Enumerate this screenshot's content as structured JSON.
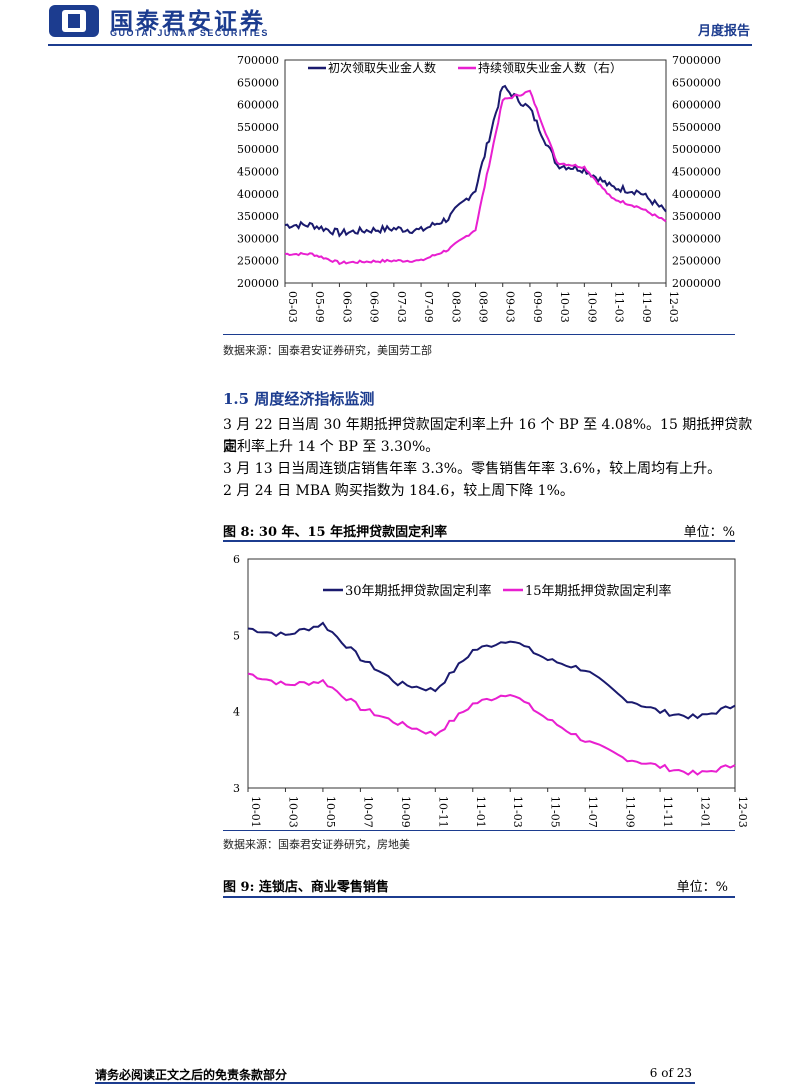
{
  "header": {
    "logo_cn": "国泰君安证券",
    "logo_en": "GUOTAI JUNAN SECURITIES",
    "report_type": "月度报告",
    "logo_colors": {
      "primary": "#1c3c8f"
    }
  },
  "chart1": {
    "source": "数据来源：国泰君安证券研究，美国劳工部"
  },
  "section": {
    "title": "1.5  周度经济指标监测",
    "paragraphs": [
      "3 月 22 日当周 30 年期抵押贷款固定利率上升 16 个 BP 至 4.08%。15 期抵押贷款固",
      "定利率上升 14 个 BP 至  3.30%。",
      "3 月 13 日当周连锁店销售年率 3.3%。零售销售年率 3.6%，较上周均有上升。",
      "2 月 24 日 MBA 购买指数为 184.6，较上周下降 1%。"
    ]
  },
  "figure8": {
    "title": "图 8:  30 年、15 年抵押贷款固定利率",
    "unit": "单位：%",
    "source": "数据来源：国泰君安证券研究，房地美"
  },
  "figure9": {
    "title": "图 9:  连锁店、商业零售销售",
    "unit": "单位：%"
  },
  "footer": {
    "disclaimer": "请务必阅读正文之后的免责条款部分",
    "page": "6 of 23"
  },
  "chart_data": [
    {
      "type": "line",
      "x": [
        "05-03",
        "05-09",
        "06-03",
        "06-09",
        "07-03",
        "07-09",
        "08-03",
        "08-09",
        "09-03",
        "09-09",
        "10-03",
        "10-09",
        "11-03",
        "11-09",
        "12-03"
      ],
      "series": [
        {
          "name": "初次领取失业金人数",
          "axis": "left",
          "color": "#1a1a6e",
          "values": [
            330000,
            330000,
            312000,
            318000,
            322000,
            318000,
            345000,
            410000,
            640000,
            590000,
            465000,
            455000,
            415000,
            405000,
            360000
          ]
        },
        {
          "name": "持续领取失业金人数（右）",
          "axis": "right",
          "color": "#e81fd0",
          "values": [
            2650000,
            2650000,
            2450000,
            2480000,
            2500000,
            2500000,
            2750000,
            3200000,
            6100000,
            6300000,
            4700000,
            4600000,
            3900000,
            3700000,
            3380000
          ]
        }
      ],
      "ylim_left": [
        200000,
        700000
      ],
      "ylim_right": [
        2000000,
        7000000
      ],
      "yticks_left": [
        200000,
        250000,
        300000,
        350000,
        400000,
        450000,
        500000,
        550000,
        600000,
        650000,
        700000
      ],
      "yticks_right": [
        2000000,
        2500000,
        3000000,
        3500000,
        4000000,
        4500000,
        5000000,
        5500000,
        6000000,
        6500000,
        7000000
      ],
      "legend": "top"
    },
    {
      "type": "line",
      "x": [
        "10-01",
        "10-03",
        "10-05",
        "10-07",
        "10-09",
        "10-11",
        "11-01",
        "11-03",
        "11-05",
        "11-07",
        "11-09",
        "11-11",
        "12-01",
        "12-03"
      ],
      "series": [
        {
          "name": "30年期抵押贷款固定利率",
          "color": "#1a1a6e",
          "values": [
            5.09,
            5.0,
            5.15,
            4.7,
            4.37,
            4.28,
            4.8,
            4.95,
            4.68,
            4.55,
            4.18,
            4.0,
            3.92,
            4.08
          ]
        },
        {
          "name": "15年期抵押贷款固定利率",
          "color": "#e81fd0",
          "values": [
            4.5,
            4.35,
            4.4,
            4.05,
            3.85,
            3.7,
            4.1,
            4.25,
            3.9,
            3.62,
            3.4,
            3.28,
            3.18,
            3.3
          ]
        }
      ],
      "ylim": [
        3,
        6
      ],
      "yticks": [
        3,
        4,
        5,
        6
      ],
      "legend": "top"
    }
  ]
}
